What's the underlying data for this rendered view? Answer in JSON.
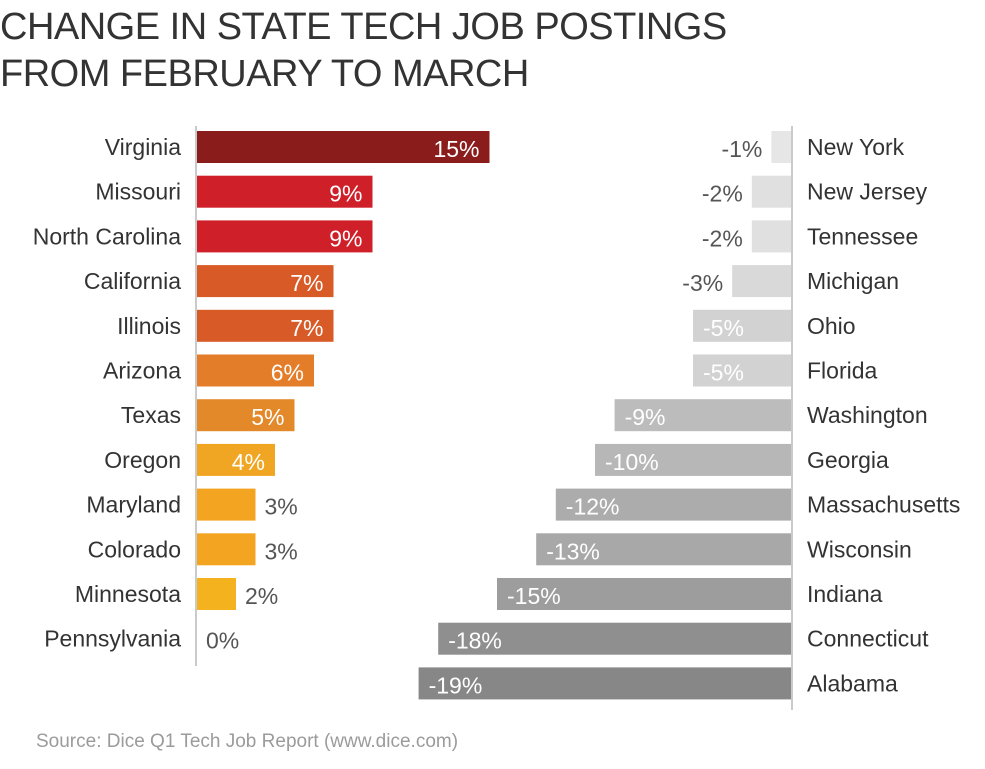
{
  "title_lines": [
    "CHANGE IN STATE TECH JOB POSTINGS",
    "FROM FEBRUARY TO MARCH"
  ],
  "source": "Source: Dice Q1 Tech Job Report (www.dice.com)",
  "chart_data": [
    {
      "type": "bar",
      "orientation": "horizontal",
      "panel": "increases",
      "categories": [
        "Virginia",
        "Missouri",
        "North Carolina",
        "California",
        "Illinois",
        "Arizona",
        "Texas",
        "Oregon",
        "Maryland",
        "Colorado",
        "Minnesota",
        "Pennsylvania"
      ],
      "values": [
        15,
        9,
        9,
        7,
        7,
        6,
        5,
        4,
        3,
        3,
        2,
        0
      ],
      "labels": [
        "15%",
        "9%",
        "9%",
        "7%",
        "7%",
        "6%",
        "5%",
        "4%",
        "3%",
        "3%",
        "2%",
        "0%"
      ],
      "colors": [
        "#8b1c1c",
        "#cf202a",
        "#cf202a",
        "#d85a27",
        "#d85a27",
        "#e37d29",
        "#e3892a",
        "#f0a623",
        "#f3a521",
        "#f3a521",
        "#f5b21f",
        "#f5b21f"
      ]
    },
    {
      "type": "bar",
      "orientation": "horizontal",
      "panel": "decreases",
      "categories": [
        "New York",
        "New Jersey",
        "Tennessee",
        "Michigan",
        "Ohio",
        "Florida",
        "Washington",
        "Georgia",
        "Massachusetts",
        "Wisconsin",
        "Indiana",
        "Connecticut",
        "Alabama"
      ],
      "values": [
        -1,
        -2,
        -2,
        -3,
        -5,
        -5,
        -9,
        -10,
        -12,
        -13,
        -15,
        -18,
        -19
      ],
      "labels": [
        "-1%",
        "-2%",
        "-2%",
        "-3%",
        "-5%",
        "-5%",
        "-9%",
        "-10%",
        "-12%",
        "-13%",
        "-15%",
        "-18%",
        "-19%"
      ],
      "colors": [
        "#e6e6e6",
        "#e0e0e0",
        "#e0e0e0",
        "#d9d9d9",
        "#d2d2d2",
        "#d2d2d2",
        "#bcbcbc",
        "#b7b7b7",
        "#acacac",
        "#a8a8a8",
        "#9d9d9d",
        "#8f8f8f",
        "#878787"
      ]
    }
  ]
}
